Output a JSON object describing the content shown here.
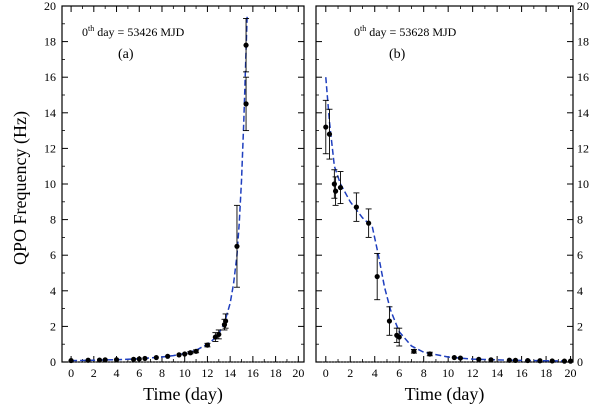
{
  "chart_data": {
    "type": "scatter",
    "ylabel": "QPO Frequency (Hz)",
    "ylim": [
      0,
      20
    ],
    "yticks": [
      "0",
      "2",
      "4",
      "6",
      "8",
      "10",
      "12",
      "14",
      "16",
      "18",
      "20"
    ],
    "xticks": [
      "0",
      "2",
      "4",
      "6",
      "8",
      "10",
      "12",
      "14",
      "16",
      "18",
      "20"
    ],
    "grid": false,
    "panels": [
      {
        "label": "(a)",
        "zero_day_sup": "th",
        "zero_day_prefix": "0",
        "zero_day_text": " day = 53426 MJD",
        "xlabel": "Time (day)",
        "xlim": [
          -0.8,
          20.5
        ],
        "points": [
          {
            "x": 0.0,
            "y": 0.08,
            "err": 0.03
          },
          {
            "x": 1.5,
            "y": 0.1,
            "err": 0.03
          },
          {
            "x": 2.5,
            "y": 0.11,
            "err": 0.03
          },
          {
            "x": 3.0,
            "y": 0.12,
            "err": 0.03
          },
          {
            "x": 4.0,
            "y": 0.13,
            "err": 0.03
          },
          {
            "x": 5.5,
            "y": 0.15,
            "err": 0.03
          },
          {
            "x": 6.0,
            "y": 0.17,
            "err": 0.03
          },
          {
            "x": 6.5,
            "y": 0.2,
            "err": 0.03
          },
          {
            "x": 7.5,
            "y": 0.25,
            "err": 0.03
          },
          {
            "x": 8.5,
            "y": 0.32,
            "err": 0.04
          },
          {
            "x": 9.5,
            "y": 0.4,
            "err": 0.05
          },
          {
            "x": 10.0,
            "y": 0.45,
            "err": 0.05
          },
          {
            "x": 10.5,
            "y": 0.52,
            "err": 0.06
          },
          {
            "x": 11.0,
            "y": 0.6,
            "err": 0.08
          },
          {
            "x": 12.0,
            "y": 0.95,
            "err": 0.1
          },
          {
            "x": 12.7,
            "y": 1.4,
            "err": 0.25
          },
          {
            "x": 13.0,
            "y": 1.55,
            "err": 0.25
          },
          {
            "x": 13.5,
            "y": 2.1,
            "err": 0.3
          },
          {
            "x": 13.6,
            "y": 2.3,
            "err": 0.4
          },
          {
            "x": 14.6,
            "y": 6.5,
            "err": 2.3
          },
          {
            "x": 15.4,
            "y": 14.5,
            "err": 1.5
          },
          {
            "x": 15.4,
            "y": 17.8,
            "err": 1.5
          }
        ],
        "fit": [
          [
            0,
            0.08
          ],
          [
            2,
            0.1
          ],
          [
            4,
            0.13
          ],
          [
            6,
            0.18
          ],
          [
            8,
            0.28
          ],
          [
            9,
            0.36
          ],
          [
            10,
            0.48
          ],
          [
            11,
            0.66
          ],
          [
            12,
            1.0
          ],
          [
            12.5,
            1.25
          ],
          [
            13,
            1.6
          ],
          [
            13.5,
            2.2
          ],
          [
            14,
            3.3
          ],
          [
            14.3,
            4.4
          ],
          [
            14.6,
            6.0
          ],
          [
            14.8,
            7.8
          ],
          [
            15.0,
            10.2
          ],
          [
            15.2,
            13.5
          ],
          [
            15.35,
            16.5
          ],
          [
            15.5,
            19.5
          ]
        ]
      },
      {
        "label": "(b)",
        "zero_day_sup": "th",
        "zero_day_prefix": "0",
        "zero_day_text": " day = 53628 MJD",
        "xlabel": "Time (day)",
        "xlim": [
          -0.8,
          20.2
        ],
        "points": [
          {
            "x": 0.0,
            "y": 13.2,
            "err": 1.5
          },
          {
            "x": 0.3,
            "y": 12.8,
            "err": 1.4
          },
          {
            "x": 0.7,
            "y": 10.0,
            "err": 0.8
          },
          {
            "x": 0.8,
            "y": 9.6,
            "err": 0.8
          },
          {
            "x": 1.2,
            "y": 9.8,
            "err": 0.9
          },
          {
            "x": 2.5,
            "y": 8.7,
            "err": 0.8
          },
          {
            "x": 3.5,
            "y": 7.8,
            "err": 0.8
          },
          {
            "x": 4.2,
            "y": 4.8,
            "err": 1.3
          },
          {
            "x": 5.2,
            "y": 2.3,
            "err": 0.8
          },
          {
            "x": 5.8,
            "y": 1.5,
            "err": 0.4
          },
          {
            "x": 6.0,
            "y": 1.4,
            "err": 0.5
          },
          {
            "x": 7.2,
            "y": 0.6,
            "err": 0.1
          },
          {
            "x": 8.5,
            "y": 0.45,
            "err": 0.1
          },
          {
            "x": 10.5,
            "y": 0.25,
            "err": 0.05
          },
          {
            "x": 11.0,
            "y": 0.22,
            "err": 0.05
          },
          {
            "x": 12.5,
            "y": 0.15,
            "err": 0.04
          },
          {
            "x": 13.5,
            "y": 0.12,
            "err": 0.04
          },
          {
            "x": 15.0,
            "y": 0.1,
            "err": 0.03
          },
          {
            "x": 15.5,
            "y": 0.09,
            "err": 0.03
          },
          {
            "x": 16.5,
            "y": 0.08,
            "err": 0.03
          },
          {
            "x": 17.5,
            "y": 0.07,
            "err": 0.03
          },
          {
            "x": 18.5,
            "y": 0.06,
            "err": 0.03
          },
          {
            "x": 19.5,
            "y": 0.05,
            "err": 0.03
          },
          {
            "x": 20.0,
            "y": 0.05,
            "err": 0.03
          }
        ],
        "fit": [
          [
            0,
            16.0
          ],
          [
            0.3,
            13.5
          ],
          [
            0.7,
            11.0
          ],
          [
            1.2,
            10.0
          ],
          [
            2,
            9.0
          ],
          [
            3,
            8.1
          ],
          [
            3.8,
            7.6
          ],
          [
            4.3,
            6.0
          ],
          [
            4.8,
            4.2
          ],
          [
            5.3,
            2.9
          ],
          [
            6,
            1.7
          ],
          [
            7,
            0.9
          ],
          [
            8,
            0.55
          ],
          [
            10,
            0.28
          ],
          [
            12,
            0.16
          ],
          [
            15,
            0.1
          ],
          [
            20,
            0.05
          ]
        ]
      }
    ],
    "colors": {
      "fit_line": "#1f3fbf",
      "points": "#000000",
      "zero_line": "#555555"
    }
  }
}
